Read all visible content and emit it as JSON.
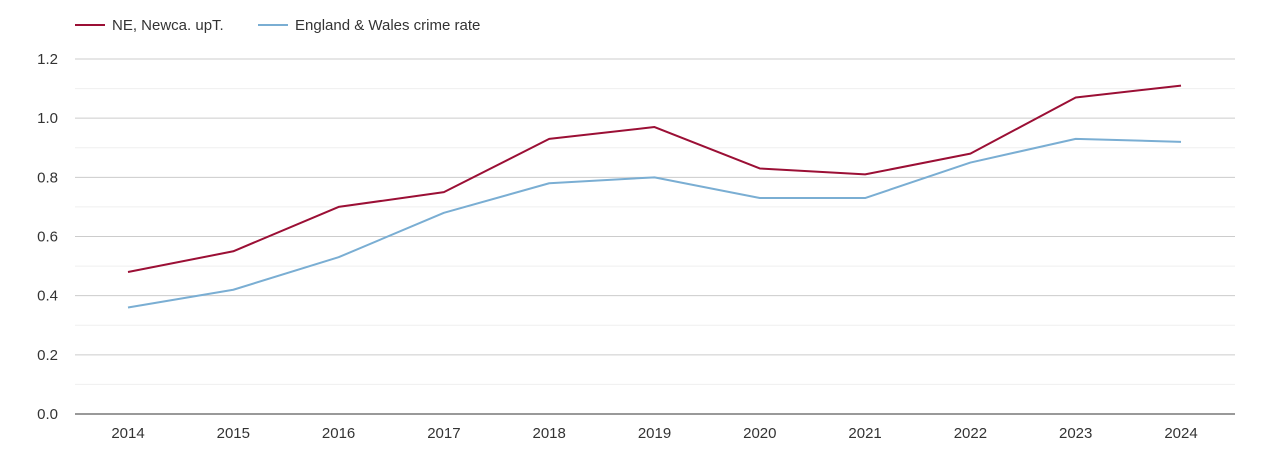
{
  "chart_data": {
    "type": "line",
    "title": "",
    "xlabel": "",
    "ylabel": "",
    "categories": [
      "2014",
      "2015",
      "2016",
      "2017",
      "2018",
      "2019",
      "2020",
      "2021",
      "2022",
      "2023",
      "2024"
    ],
    "ylim": [
      0,
      1.2
    ],
    "y_ticks": [
      "0.0",
      "0.2",
      "0.4",
      "0.6",
      "0.8",
      "1.0",
      "1.2"
    ],
    "y_tick_values": [
      0,
      0.2,
      0.4,
      0.6,
      0.8,
      1.0,
      1.2
    ],
    "minor_grid_values": [
      0.1,
      0.3,
      0.5,
      0.7,
      0.9,
      1.1
    ],
    "legend_position": "top-left",
    "series": [
      {
        "name": "NE, Newca. upT.",
        "color": "#9b0f35",
        "values": [
          0.48,
          0.55,
          0.7,
          0.75,
          0.93,
          0.97,
          0.83,
          0.81,
          0.88,
          1.07,
          1.11
        ]
      },
      {
        "name": "England & Wales crime rate",
        "color": "#7aaed3",
        "values": [
          0.36,
          0.42,
          0.53,
          0.68,
          0.78,
          0.8,
          0.73,
          0.73,
          0.85,
          0.93,
          0.92
        ]
      }
    ]
  }
}
